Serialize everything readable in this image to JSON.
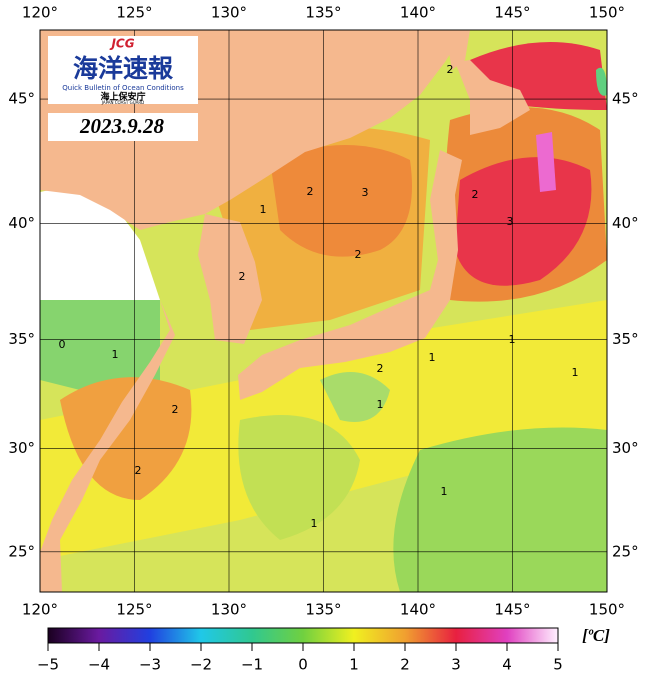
{
  "map": {
    "logo": {
      "abbr": "JCG",
      "title": "海洋速報",
      "subtitle": "Quick Bulletin of Ocean Conditions",
      "agency": "海上保安庁",
      "agency_en": "JAPAN COAST GUARD"
    },
    "date": "2023.9.28",
    "lon_range": [
      120,
      150
    ],
    "lat_range": [
      23,
      47.6
    ],
    "lon_ticks": [
      {
        "value": 120,
        "label": "120°"
      },
      {
        "value": 125,
        "label": "125°"
      },
      {
        "value": 130,
        "label": "130°"
      },
      {
        "value": 135,
        "label": "135°"
      },
      {
        "value": 140,
        "label": "140°"
      },
      {
        "value": 145,
        "label": "145°"
      },
      {
        "value": 150,
        "label": "150°"
      }
    ],
    "lat_ticks": [
      {
        "value": 25,
        "label": "25°"
      },
      {
        "value": 30,
        "label": "30°"
      },
      {
        "value": 35,
        "label": "35°"
      },
      {
        "value": 40,
        "label": "40°"
      },
      {
        "value": 45,
        "label": "45°"
      }
    ],
    "contour_labels": [
      "2",
      "3",
      "2",
      "1",
      "2",
      "2",
      "2",
      "3",
      "0",
      "1",
      "2",
      "2",
      "1",
      "2",
      "1",
      "1",
      "1",
      "1",
      "1"
    ]
  },
  "colorbar": {
    "unit": "[ºC]",
    "range": [
      -5,
      5
    ],
    "colors": [
      "#1a0020",
      "#6a1aa0",
      "#2040e0",
      "#20c8e8",
      "#30c890",
      "#70d040",
      "#f0f020",
      "#f0a030",
      "#e82040",
      "#e040c0",
      "#fff0ff"
    ],
    "ticks": [
      {
        "value": -5,
        "label": "−5"
      },
      {
        "value": -4,
        "label": "−4"
      },
      {
        "value": -3,
        "label": "−3"
      },
      {
        "value": -2,
        "label": "−2"
      },
      {
        "value": -1,
        "label": "−1"
      },
      0,
      1,
      2,
      3,
      4,
      5
    ]
  }
}
